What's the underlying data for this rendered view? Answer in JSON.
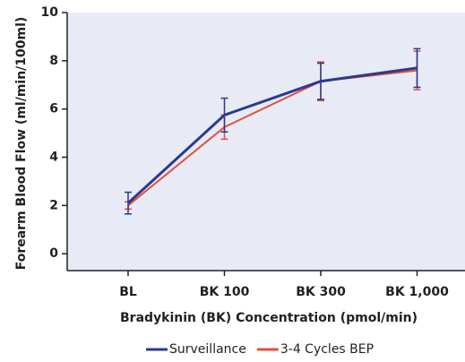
{
  "chart_data": {
    "type": "line",
    "y_label": "Forearm Blood Flow (ml/min/100ml)",
    "x_label": "Bradykinin (BK) Concentration (pmol/min)",
    "categories": [
      "BL",
      "BK 100",
      "BK 300",
      "BK 1,000"
    ],
    "series": [
      {
        "name": "Surveillance",
        "color": "#2b3990",
        "values": [
          2.1,
          5.75,
          7.15,
          7.7
        ],
        "errors": [
          0.45,
          0.7,
          0.75,
          0.8
        ]
      },
      {
        "name": "3-4 Cycles BEP",
        "color": "#e0523a",
        "values": [
          2.0,
          5.25,
          7.15,
          7.6
        ],
        "errors": [
          0.15,
          0.5,
          0.8,
          0.8
        ]
      }
    ],
    "ylim": [
      -0.7,
      10
    ],
    "yticks": [
      0,
      2,
      4,
      6,
      8,
      10
    ]
  }
}
